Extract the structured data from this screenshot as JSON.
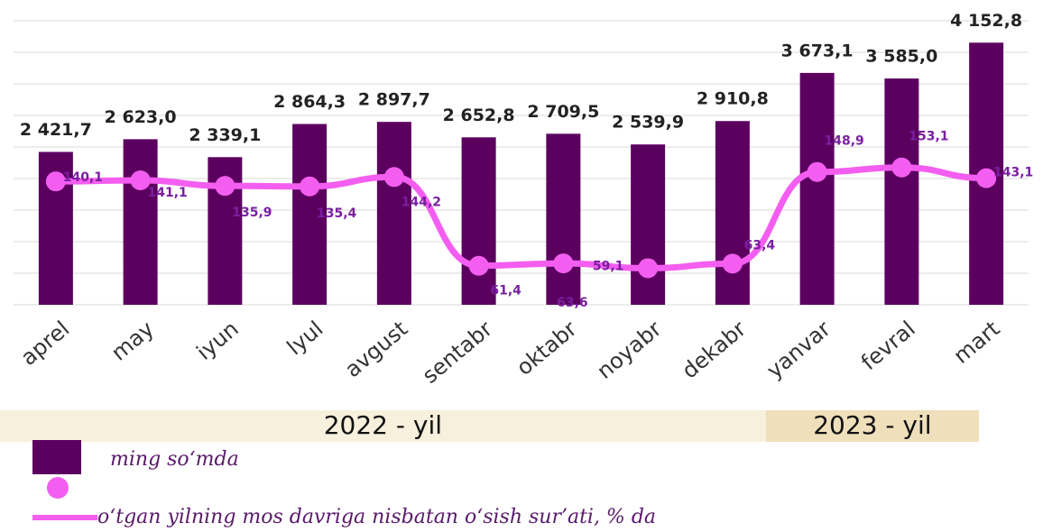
{
  "chart_data": {
    "type": "bar-line",
    "categories": [
      "aprel",
      "may",
      "iyun",
      "lyul",
      "avgust",
      "sentabr",
      "oktabr",
      "noyabr",
      "dekabr",
      "yanvar",
      "fevral",
      "mart"
    ],
    "series": [
      {
        "name": "ming so‘mda",
        "color": "#5c0060",
        "type": "bar",
        "values": [
          2421.7,
          2623.0,
          2339.1,
          2864.3,
          2897.7,
          2652.8,
          2709.5,
          2539.9,
          2910.8,
          3673.1,
          3585.0,
          4152.8
        ],
        "value_labels": [
          "2 421,7",
          "2 623,0",
          "2 339,1",
          "2 864,3",
          "2 897,7",
          "2 652,8",
          "2 709,5",
          "2 539,9",
          "2 910,8",
          "3 673,1",
          "3 585,0",
          "4 152,8"
        ]
      },
      {
        "name": "o‘tgan yilning mos davriga nisbatan o‘sish sur’ati, % da",
        "color": "#f45ef0",
        "type": "line",
        "axis": "y2",
        "values": [
          140.1,
          141.1,
          135.9,
          135.4,
          144.2,
          61.4,
          63.6,
          59.1,
          63.4,
          148.9,
          153.1,
          143.1
        ],
        "value_labels": [
          "140,1",
          "141,1",
          "135,9",
          "135,4",
          "144,2",
          "61,4",
          "63,6",
          "59,1",
          "63,4",
          "148,9",
          "153,1",
          "143,1"
        ]
      }
    ],
    "ylim": [
      0,
      4500
    ],
    "yticks": [
      0,
      500,
      1000,
      1500,
      2000,
      2500,
      3000,
      3500,
      4000,
      4500
    ],
    "y2lim": [
      25,
      290
    ],
    "grid": true,
    "periods": [
      {
        "label": "2022 - yil",
        "from": 0,
        "to": 8
      },
      {
        "label": "2023 - yil",
        "from": 9,
        "to": 11
      }
    ]
  }
}
